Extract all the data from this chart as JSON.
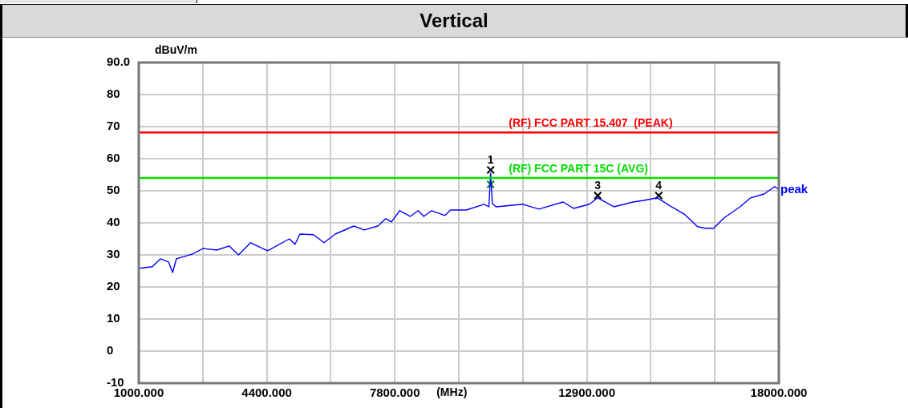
{
  "chart_data": {
    "type": "line",
    "title": "Vertical",
    "xlabel": "(MHz)",
    "ylabel": "dBuV/m",
    "xlim": [
      1000,
      18000
    ],
    "xticks": [
      {
        "value": 1000,
        "label": "1000.000"
      },
      {
        "value": 2700,
        "label": null
      },
      {
        "value": 4400,
        "label": "4400.000"
      },
      {
        "value": 6100,
        "label": null
      },
      {
        "value": 7800,
        "label": "7800.000"
      },
      {
        "value": 9500,
        "label": null
      },
      {
        "value": 11200,
        "label": null
      },
      {
        "value": 12900,
        "label": "12900.000"
      },
      {
        "value": 14600,
        "label": null
      },
      {
        "value": 16300,
        "label": null
      },
      {
        "value": 18000,
        "label": "18000.000"
      }
    ],
    "ylim": [
      -10,
      90
    ],
    "yticks": [
      -10,
      0,
      10,
      20,
      30,
      40,
      50,
      60,
      70,
      80,
      {
        "value": 90,
        "label": "90.0"
      }
    ],
    "grid": true,
    "legend": false,
    "line_style": "solid",
    "series": [
      {
        "name": "peak",
        "color": "#0000ff",
        "x": [
          1000,
          1360,
          1580,
          1790,
          1900,
          2000,
          2430,
          2710,
          3070,
          3400,
          3650,
          3970,
          4420,
          5000,
          5150,
          5280,
          5640,
          5920,
          6220,
          6710,
          6990,
          7350,
          7560,
          7710,
          7930,
          8210,
          8420,
          8570,
          8780,
          9130,
          9280,
          9700,
          10170,
          10300,
          10345,
          10390,
          10490,
          11200,
          11630,
          12270,
          12550,
          12970,
          13190,
          13620,
          14130,
          14410,
          14770,
          15110,
          15480,
          15840,
          16050,
          16270,
          16540,
          16970,
          17250,
          17610,
          17890,
          18000
        ],
        "values": [
          25.8,
          26.3,
          28.8,
          27.8,
          24.5,
          28.8,
          30.3,
          32,
          31.5,
          32.8,
          30,
          33.8,
          31.3,
          35,
          33.3,
          36.5,
          36.3,
          33.8,
          36.5,
          39,
          37.8,
          39,
          41.3,
          40.3,
          43.8,
          42,
          43.8,
          42,
          43.8,
          42.3,
          44,
          44,
          45.8,
          45,
          55.5,
          46,
          45,
          45.8,
          44.3,
          46.5,
          44.5,
          45.8,
          47.8,
          45,
          46.5,
          47,
          47.8,
          45.3,
          42.8,
          38.8,
          38.3,
          38.3,
          41.5,
          45,
          47.8,
          49,
          51.3,
          50.3
        ]
      },
      {
        "type": "scatter",
        "marker": "cross",
        "color": "#000000",
        "x": [
          10345,
          13190,
          14810
        ],
        "values": [
          56.5,
          48.5,
          48.5
        ]
      },
      {
        "type": "scatter",
        "marker": "cross",
        "color": "#008000",
        "x": [
          10345
        ],
        "values": [
          52
        ]
      }
    ],
    "ref_lines": [
      {
        "axis": "y",
        "value": 68.2,
        "label": "(RF) FCC PART 15.407  (PEAK)",
        "color": "#ff0000"
      },
      {
        "axis": "y",
        "value": 54,
        "label": "(RF) FCC PART 15C (AVG)",
        "color": "#00e000"
      }
    ],
    "annotations": [
      {
        "text": "1",
        "x": 10345,
        "y": 56.5
      },
      {
        "text": "3",
        "x": 13190,
        "y": 48.5
      },
      {
        "text": "4",
        "x": 14810,
        "y": 48.5
      }
    ]
  }
}
